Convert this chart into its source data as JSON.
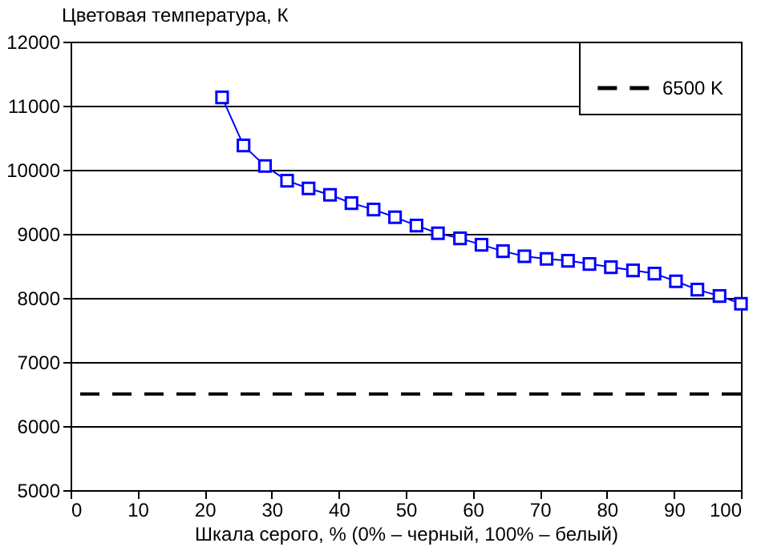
{
  "chart_data": {
    "type": "line",
    "xlabel": "Шкала серого, % (0% – черный, 100% – белый)",
    "ylabel": "Цветовая температура, К",
    "x": [
      22.6,
      25.8,
      29.0,
      32.3,
      35.5,
      38.7,
      41.9,
      45.2,
      48.4,
      51.6,
      54.8,
      58.1,
      61.3,
      64.5,
      67.7,
      71.0,
      74.2,
      77.4,
      80.6,
      83.9,
      87.1,
      90.3,
      93.5,
      96.8,
      100
    ],
    "series": [
      {
        "color": "#0000ff",
        "values": [
          11130,
          10380,
          10060,
          9830,
          9710,
          9610,
          9480,
          9380,
          9260,
          9130,
          9010,
          8930,
          8830,
          8730,
          8650,
          8610,
          8580,
          8530,
          8480,
          8430,
          8380,
          8260,
          8130,
          8030,
          7910
        ]
      }
    ],
    "marker": "square",
    "line_style": "solid",
    "ref_lines": [
      {
        "axis": "y",
        "value": 6500,
        "label": "6500 K",
        "color": "#000000",
        "line_style": "dashed"
      }
    ],
    "xlim": [
      0,
      100
    ],
    "xticks": [
      0,
      10,
      20,
      30,
      40,
      50,
      60,
      70,
      80,
      90,
      100
    ],
    "ylim": [
      5000,
      12000
    ],
    "yticks": [
      5000,
      6000,
      7000,
      8000,
      9000,
      10000,
      11000,
      12000
    ],
    "grid": "y",
    "legend": "top right"
  }
}
